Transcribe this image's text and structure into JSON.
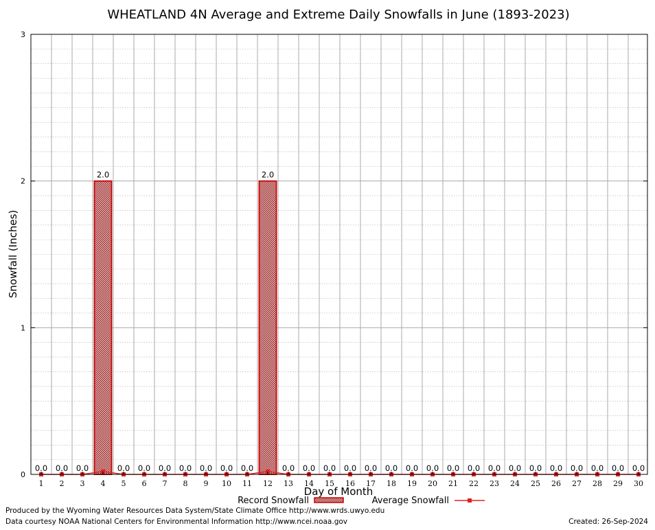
{
  "chart_data": {
    "type": "bar",
    "title": "WHEATLAND 4N Average and Extreme Daily Snowfalls in June (1893-2023)",
    "xlabel": "Day of Month",
    "ylabel": "Snowfall (Inches)",
    "ylim": [
      0,
      3
    ],
    "yticks": [
      "0",
      "1",
      "2",
      "3"
    ],
    "grid": true,
    "legend_position": "bottom-center",
    "categories": [
      "1",
      "2",
      "3",
      "4",
      "5",
      "6",
      "7",
      "8",
      "9",
      "10",
      "11",
      "12",
      "13",
      "14",
      "15",
      "16",
      "17",
      "18",
      "19",
      "20",
      "21",
      "22",
      "23",
      "24",
      "25",
      "26",
      "27",
      "28",
      "29",
      "30"
    ],
    "series": [
      {
        "name": "Record Snowfall",
        "type": "bar",
        "color": "#cc0000",
        "values": [
          0,
          0,
          0,
          2.0,
          0,
          0,
          0,
          0,
          0,
          0,
          0,
          2.0,
          0,
          0,
          0,
          0,
          0,
          0,
          0,
          0,
          0,
          0,
          0,
          0,
          0,
          0,
          0,
          0,
          0,
          0
        ],
        "labels": [
          "0.0",
          "0.0",
          "0.0",
          "2.0",
          "0.0",
          "0.0",
          "0.0",
          "0.0",
          "0.0",
          "0.0",
          "0.0",
          "2.0",
          "0.0",
          "0.0",
          "0.0",
          "0.0",
          "0.0",
          "0.0",
          "0.0",
          "0.0",
          "0.0",
          "0.0",
          "0.0",
          "0.0",
          "0.0",
          "0.0",
          "0.0",
          "0.0",
          "0.0",
          "0.0"
        ]
      },
      {
        "name": "Average Snowfall",
        "type": "line",
        "color": "#dd2222",
        "values": [
          0,
          0,
          0,
          0.02,
          0,
          0,
          0,
          0,
          0,
          0,
          0,
          0.02,
          0,
          0,
          0,
          0,
          0,
          0,
          0,
          0,
          0,
          0,
          0,
          0,
          0,
          0,
          0,
          0,
          0,
          0
        ]
      }
    ]
  },
  "footer": {
    "credit_line1": "Produced by the Wyoming Water Resources Data System/State Climate Office http://www.wrds.uwyo.edu",
    "credit_line2": "Data courtesy NOAA National Centers for Environmental Information http://www.ncei.noaa.gov",
    "created": "Created:  26-Sep-2024"
  }
}
